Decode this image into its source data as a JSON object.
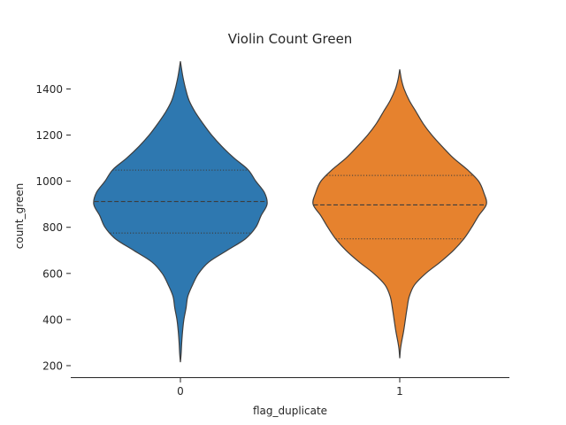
{
  "chart_data": {
    "type": "violin",
    "title": "Violin Count Green",
    "xlabel": "flag_duplicate",
    "ylabel": "count_green",
    "categories": [
      "0",
      "1"
    ],
    "y_ticks": [
      200,
      400,
      600,
      800,
      1000,
      1200,
      1400
    ],
    "ylim": [
      150,
      1540
    ],
    "colors": {
      "0": "#2e78b0",
      "1": "#e6822e",
      "outline": "#3d3d3d",
      "axis": "#262626"
    },
    "grid": false,
    "legend": "none",
    "violins": [
      {
        "category": "0",
        "quartiles": {
          "q1": 775,
          "median": 912,
          "q3": 1048
        },
        "profile": [
          {
            "y": 215,
            "w": 0.0
          },
          {
            "y": 250,
            "w": 0.008
          },
          {
            "y": 300,
            "w": 0.015
          },
          {
            "y": 350,
            "w": 0.025
          },
          {
            "y": 400,
            "w": 0.04
          },
          {
            "y": 450,
            "w": 0.065
          },
          {
            "y": 500,
            "w": 0.085
          },
          {
            "y": 550,
            "w": 0.14
          },
          {
            "y": 600,
            "w": 0.21
          },
          {
            "y": 650,
            "w": 0.33
          },
          {
            "y": 700,
            "w": 0.54
          },
          {
            "y": 750,
            "w": 0.75
          },
          {
            "y": 800,
            "w": 0.87
          },
          {
            "y": 850,
            "w": 0.93
          },
          {
            "y": 900,
            "w": 1.0
          },
          {
            "y": 950,
            "w": 0.97
          },
          {
            "y": 1000,
            "w": 0.87
          },
          {
            "y": 1050,
            "w": 0.78
          },
          {
            "y": 1100,
            "w": 0.62
          },
          {
            "y": 1150,
            "w": 0.48
          },
          {
            "y": 1200,
            "w": 0.36
          },
          {
            "y": 1250,
            "w": 0.26
          },
          {
            "y": 1300,
            "w": 0.17
          },
          {
            "y": 1350,
            "w": 0.1
          },
          {
            "y": 1400,
            "w": 0.06
          },
          {
            "y": 1450,
            "w": 0.03
          },
          {
            "y": 1490,
            "w": 0.012
          },
          {
            "y": 1520,
            "w": 0.0
          }
        ]
      },
      {
        "category": "1",
        "quartiles": {
          "q1": 750,
          "median": 897,
          "q3": 1025
        },
        "profile": [
          {
            "y": 232,
            "w": 0.0
          },
          {
            "y": 270,
            "w": 0.008
          },
          {
            "y": 300,
            "w": 0.02
          },
          {
            "y": 350,
            "w": 0.045
          },
          {
            "y": 400,
            "w": 0.065
          },
          {
            "y": 450,
            "w": 0.085
          },
          {
            "y": 500,
            "w": 0.11
          },
          {
            "y": 550,
            "w": 0.17
          },
          {
            "y": 600,
            "w": 0.3
          },
          {
            "y": 650,
            "w": 0.47
          },
          {
            "y": 700,
            "w": 0.62
          },
          {
            "y": 750,
            "w": 0.74
          },
          {
            "y": 800,
            "w": 0.83
          },
          {
            "y": 850,
            "w": 0.91
          },
          {
            "y": 900,
            "w": 1.0
          },
          {
            "y": 950,
            "w": 0.97
          },
          {
            "y": 1000,
            "w": 0.91
          },
          {
            "y": 1050,
            "w": 0.78
          },
          {
            "y": 1100,
            "w": 0.62
          },
          {
            "y": 1150,
            "w": 0.49
          },
          {
            "y": 1200,
            "w": 0.37
          },
          {
            "y": 1250,
            "w": 0.27
          },
          {
            "y": 1300,
            "w": 0.19
          },
          {
            "y": 1350,
            "w": 0.11
          },
          {
            "y": 1400,
            "w": 0.05
          },
          {
            "y": 1440,
            "w": 0.02
          },
          {
            "y": 1485,
            "w": 0.0
          }
        ]
      }
    ]
  }
}
